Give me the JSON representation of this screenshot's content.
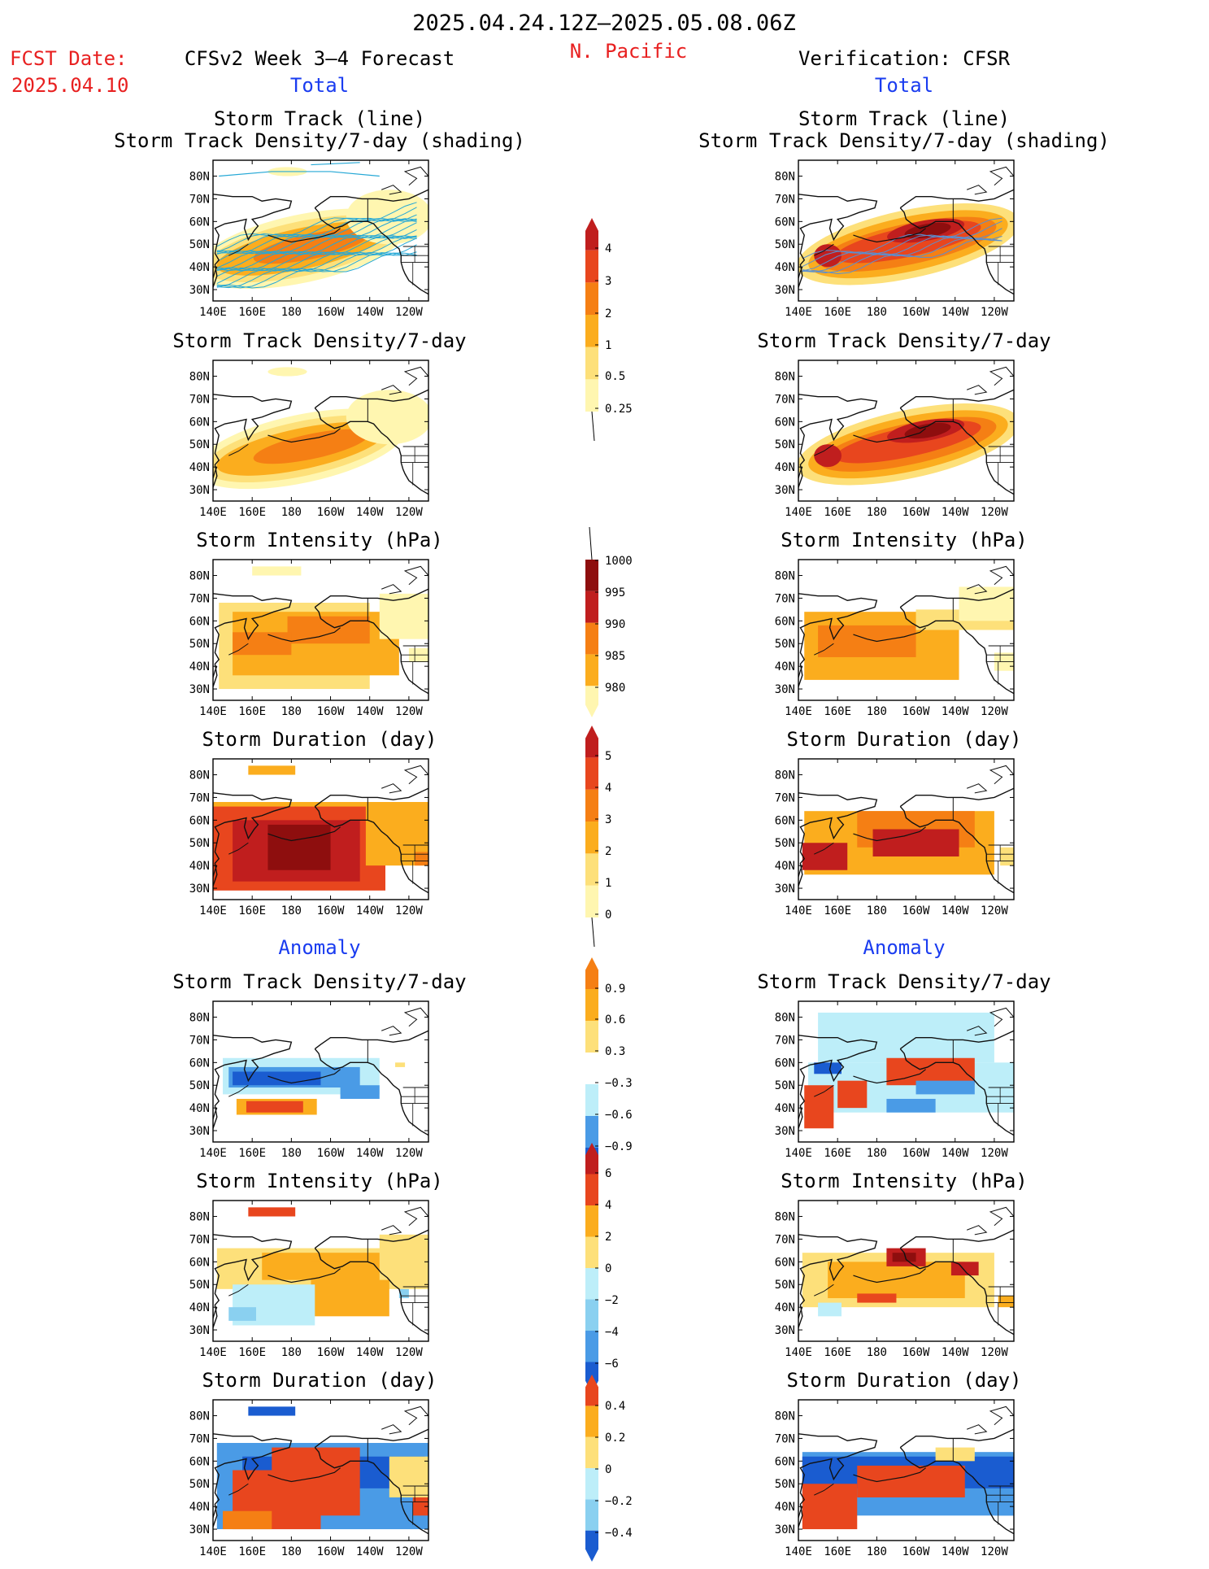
{
  "header": {
    "date_range": "2025.04.24.12Z–2025.05.08.06Z",
    "fcst_label": "FCST Date:",
    "fcst_date": "2025.04.10",
    "forecast_title": "CFSv2 Week 3–4 Forecast",
    "region": "N. Pacific",
    "verification_title": "Verification: CFSR",
    "left_total": "Total",
    "right_total": "Total",
    "left_anomaly": "Anomaly",
    "right_anomaly": "Anomaly"
  },
  "axes": {
    "lat_labels": [
      "80N",
      "70N",
      "60N",
      "50N",
      "40N",
      "30N"
    ],
    "lon_labels": [
      "140E",
      "160E",
      "180",
      "160W",
      "140W",
      "120W"
    ]
  },
  "panel_titles": {
    "track_line": "Storm Track (line)",
    "track_shading": "Storm Track Density/7-day (shading)",
    "density": "Storm Track Density/7-day",
    "intensity": "Storm Intensity (hPa)",
    "duration": "Storm Duration (day)"
  },
  "colors": {
    "c1": "#fff6b0",
    "c2": "#fde07a",
    "c3": "#fbad1e",
    "c4": "#f57f14",
    "c5": "#e8461e",
    "c6": "#c01e1e",
    "c7": "#8e0e0e",
    "b1": "#bdeef9",
    "b2": "#8ad0f0",
    "b3": "#4a9be6",
    "b4": "#1a5cd0",
    "track": "#25a8d6"
  },
  "colorbars": [
    {
      "id": "density",
      "labels": [
        "4",
        "3",
        "2",
        "1",
        "0.5",
        "0.25"
      ]
    },
    {
      "id": "intensity",
      "labels": [
        "1000",
        "995",
        "990",
        "985",
        "980"
      ]
    },
    {
      "id": "duration",
      "labels": [
        "5",
        "4",
        "3",
        "2",
        "1",
        "0"
      ]
    },
    {
      "id": "density_anom",
      "labels": [
        "0.9",
        "0.6",
        "0.3",
        "−0.3",
        "−0.6",
        "−0.9"
      ]
    },
    {
      "id": "intensity_anom",
      "labels": [
        "6",
        "4",
        "2",
        "0",
        "−2",
        "−4",
        "−6"
      ]
    },
    {
      "id": "duration_anom",
      "labels": [
        "0.4",
        "0.2",
        "0",
        "−0.2",
        "−0.4"
      ]
    }
  ]
}
